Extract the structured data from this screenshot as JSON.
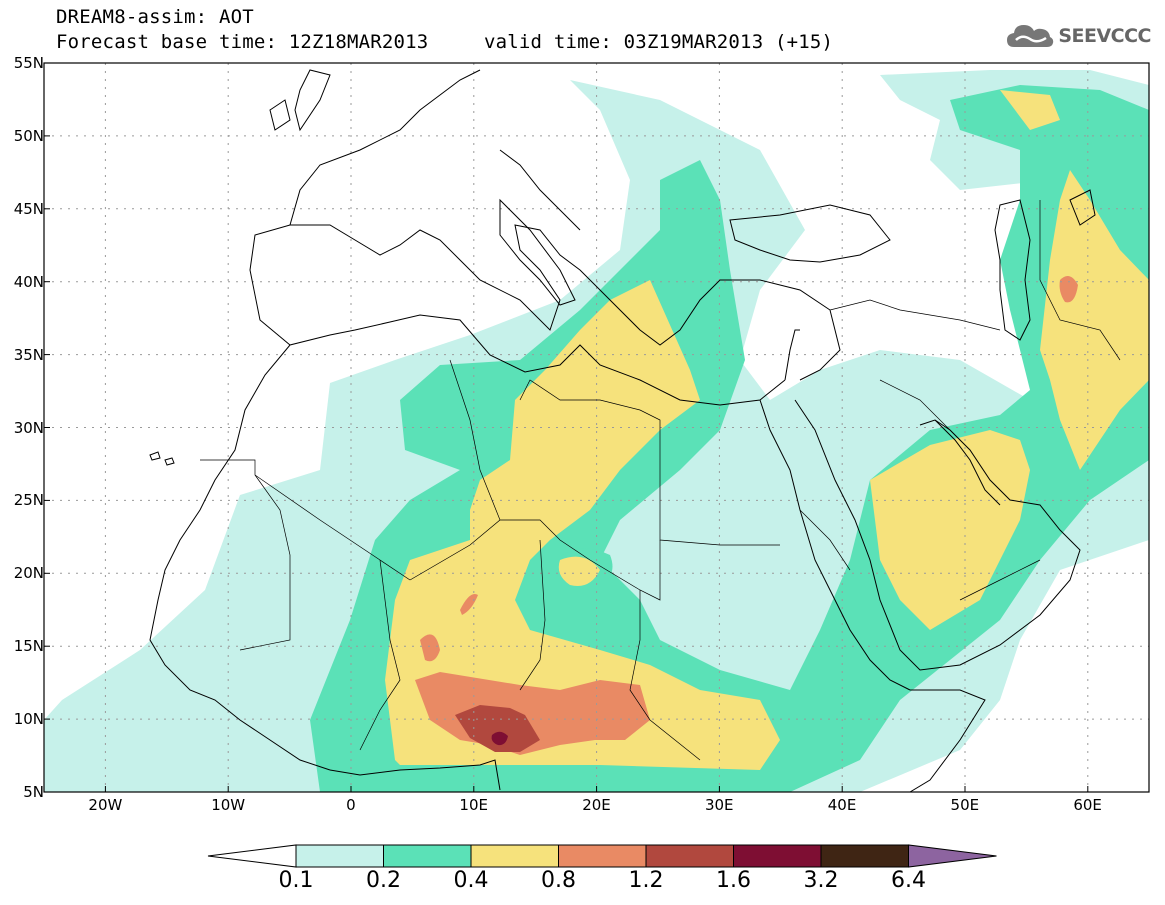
{
  "title": {
    "line1": "DREAM8-assim: AOT",
    "line2_left": "Forecast base time: 12Z18MAR2013",
    "line2_right": "valid time: 03Z19MAR2013 (+15)"
  },
  "logo": {
    "text": "SEEVCCC",
    "icon": "cloud-icon"
  },
  "map": {
    "variable": "AOT",
    "lat_range": [
      5,
      55
    ],
    "lon_range": [
      -25,
      65
    ],
    "lat_ticks": [
      "55N",
      "50N",
      "45N",
      "40N",
      "35N",
      "30N",
      "25N",
      "20N",
      "15N",
      "10N",
      "5N"
    ],
    "lon_ticks": [
      "20W",
      "10W",
      "0",
      "10E",
      "20E",
      "30E",
      "40E",
      "50E",
      "60E"
    ],
    "grid": true
  },
  "colorbar": {
    "labels": [
      "0.1",
      "0.2",
      "0.4",
      "0.8",
      "1.2",
      "1.6",
      "3.2",
      "6.4"
    ],
    "colors": [
      "#c6f1ea",
      "#5be1b7",
      "#f6e27c",
      "#e98a64",
      "#b1483e",
      "#7e0e33",
      "#3f2514",
      "#8d64a0"
    ],
    "under_color": "#ffffff"
  }
}
